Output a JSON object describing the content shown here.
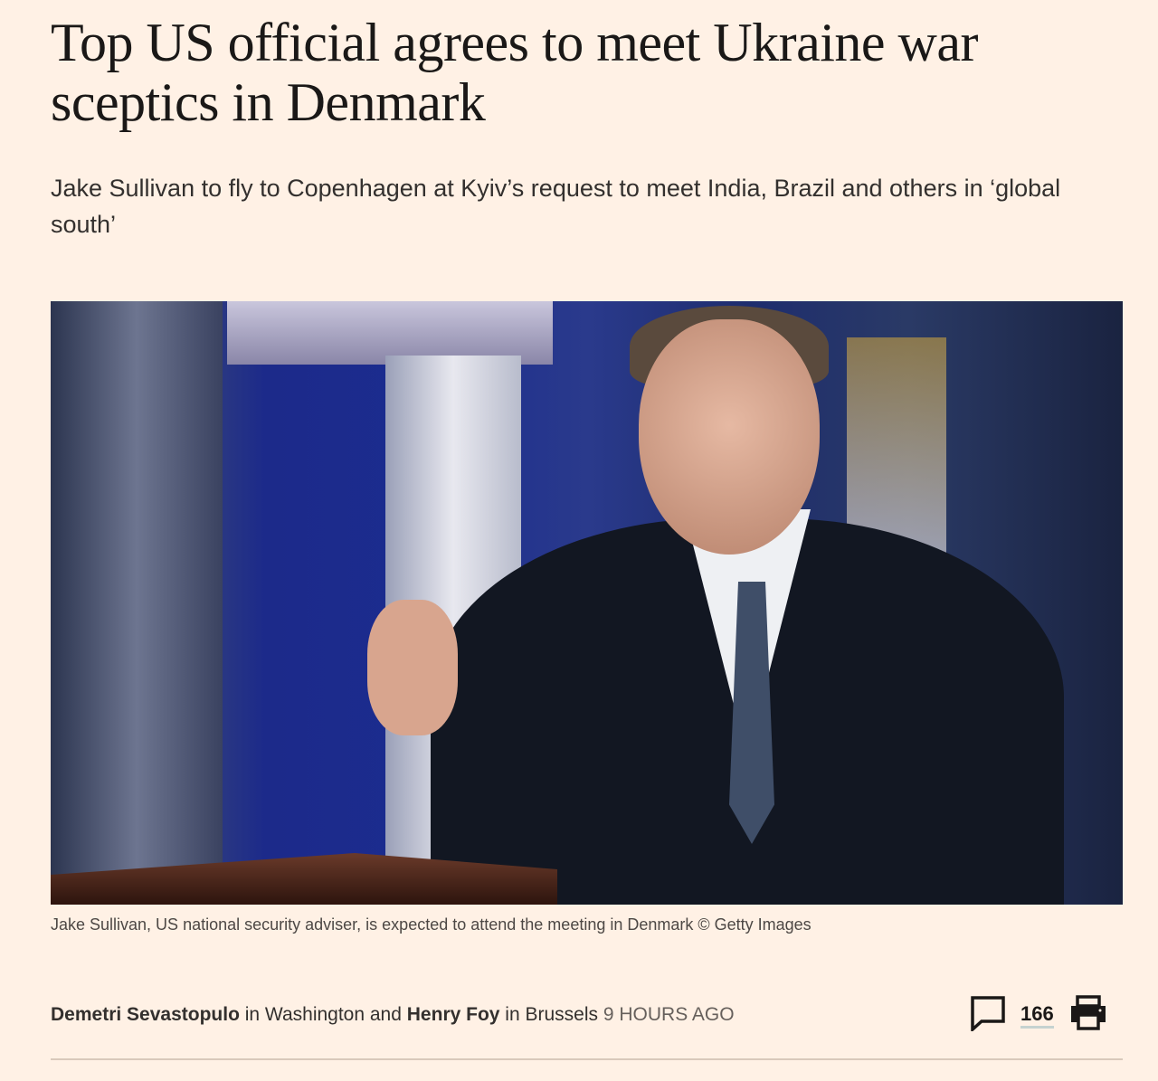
{
  "article": {
    "headline": "Top US official agrees to meet Ukraine war sceptics in Denmark",
    "standfirst": "Jake Sullivan to fly to Copenhagen at Kyiv’s request to meet India, Brazil and others in ‘global south’",
    "image": {
      "caption": "Jake Sullivan, US national security adviser, is expected to attend the meeting in Denmark © Getty Images"
    },
    "byline": {
      "author1": "Demetri Sevastopulo",
      "in1": " in ",
      "location1": "Washington",
      "and": " and ",
      "author2": "Henry Foy",
      "in2": " in ",
      "location2": "Brussels",
      "time": "9 HOURS AGO"
    },
    "tools": {
      "comment_icon": "speech-bubble-icon",
      "comment_count": "166",
      "print_icon": "printer-icon"
    }
  },
  "colors": {
    "background": "#fff1e5",
    "text": "#33302e"
  }
}
